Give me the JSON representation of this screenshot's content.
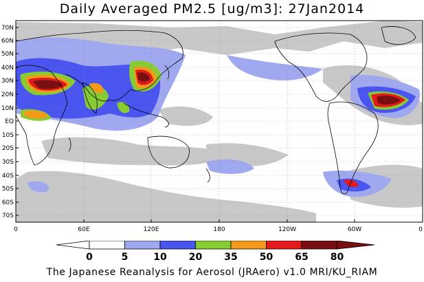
{
  "title": "Daily Averaged PM2.5 [ug/m3]: 27Jan2014",
  "footer": "The Japanese Reanalysis for Aerosol (JRAero) v1.0 MRI/KU_RIAM",
  "lat_labels": [
    "70N",
    "60N",
    "50N",
    "40N",
    "30N",
    "20N",
    "10N",
    "EQ",
    "10S",
    "20S",
    "30S",
    "40S",
    "50S",
    "60S",
    "70S"
  ],
  "lon_labels": [
    "0",
    "60E",
    "120E",
    "180",
    "120W",
    "60W",
    "0"
  ],
  "legend": {
    "ticks": [
      "0",
      "5",
      "10",
      "20",
      "35",
      "50",
      "65",
      "80"
    ],
    "colors": [
      "#ffffff",
      "#c8c8c8",
      "#a0a8f0",
      "#4a55f0",
      "#88cc33",
      "#f39a1a",
      "#e31a1a",
      "#7a0f12"
    ]
  }
}
